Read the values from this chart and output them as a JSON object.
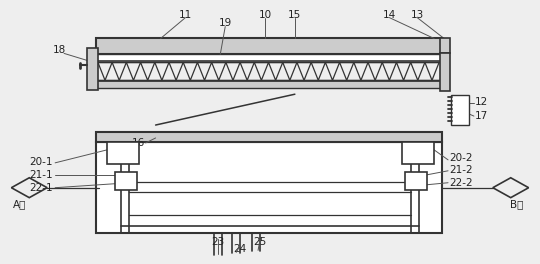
{
  "bg_color": "#eeeeee",
  "line_color": "#555555",
  "dark_color": "#333333",
  "gray_fill": "#aaaaaa",
  "light_gray": "#cccccc",
  "white": "#ffffff",
  "label_fs": 7.5,
  "label_color": "#222222"
}
